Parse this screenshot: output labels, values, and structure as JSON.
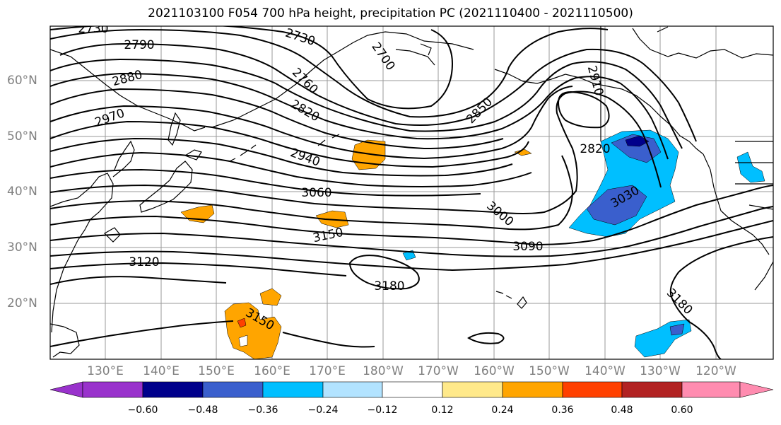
{
  "title": "2021103100 F054 700 hPa height, precipitation PC (2021110400 - 2021110500)",
  "lat_labels": [
    "60°N",
    "50°N",
    "40°N",
    "30°N",
    "20°N"
  ],
  "lon_labels": [
    "130°E",
    "140°E",
    "150°E",
    "160°E",
    "170°E",
    "180°W",
    "170°W",
    "160°W",
    "150°W",
    "140°W",
    "130°W",
    "120°W"
  ],
  "contour_labels": [
    "2730",
    "2790",
    "2730",
    "2700",
    "2880",
    "2760",
    "2820",
    "2970",
    "2850",
    "2910",
    "2820",
    "2940",
    "3060",
    "3000",
    "3030",
    "3150",
    "3090",
    "3120",
    "3180",
    "3150",
    "3180"
  ],
  "colorbar": {
    "ticks": [
      "−0.60",
      "−0.48",
      "−0.36",
      "−0.24",
      "−0.12",
      "0.12",
      "0.24",
      "0.36",
      "0.48",
      "0.60"
    ],
    "colors": [
      "#9932cc",
      "#00008b",
      "#3a5fcd",
      "#00bfff",
      "#b2e3ff",
      "#ffffff",
      "#ffe98a",
      "#ffa500",
      "#ff4000",
      "#b22222",
      "#ff8cb0"
    ]
  },
  "map": {
    "projection": "plate-carree",
    "lon_range": [
      "120°E",
      "125°W"
    ],
    "lat_range": [
      "10°N",
      "70°N"
    ],
    "grid": true,
    "field": "700 hPa height",
    "shading": "precipitation PC"
  }
}
